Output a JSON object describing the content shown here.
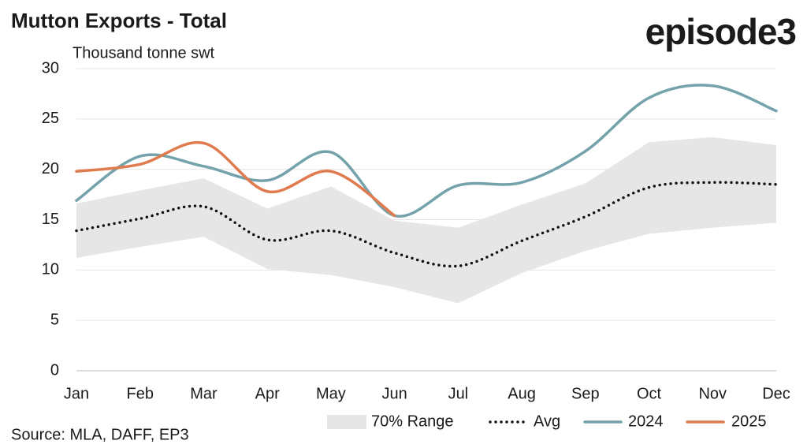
{
  "chart_data": {
    "type": "line",
    "title": "Mutton Exports - Total",
    "subtitle": "Thousand tonne swt",
    "logo": "episode3",
    "source": "Source: MLA, DAFF, EP3",
    "categories": [
      "Jan",
      "Feb",
      "Mar",
      "Apr",
      "May",
      "Jun",
      "Jul",
      "Aug",
      "Sep",
      "Oct",
      "Nov",
      "Dec"
    ],
    "ylim": [
      0,
      30
    ],
    "yticks": [
      0,
      5,
      10,
      15,
      20,
      25,
      30
    ],
    "grid": true,
    "legend": "bottom",
    "range": {
      "name": "70% Range",
      "color": "#e6e6e6",
      "lower": [
        11.2,
        12.3,
        13.3,
        10.1,
        9.5,
        8.3,
        6.7,
        9.7,
        11.9,
        13.6,
        14.2,
        14.7
      ],
      "upper": [
        16.6,
        17.9,
        19.1,
        16.1,
        18.3,
        14.9,
        14.2,
        16.5,
        18.6,
        22.7,
        23.2,
        22.4
      ]
    },
    "series": [
      {
        "name": "Avg",
        "color": "#111111",
        "style": "dotted",
        "values": [
          13.9,
          15.1,
          16.3,
          13.0,
          13.9,
          11.7,
          10.4,
          12.9,
          15.3,
          18.2,
          18.7,
          18.5
        ]
      },
      {
        "name": "2024",
        "color": "#73a2aa",
        "style": "solid",
        "values": [
          16.9,
          21.3,
          20.3,
          18.9,
          21.7,
          15.4,
          18.4,
          18.7,
          21.8,
          27.1,
          28.3,
          25.8
        ]
      },
      {
        "name": "2025",
        "color": "#e07b4f",
        "style": "solid",
        "values": [
          19.8,
          20.5,
          22.6,
          17.8,
          19.8,
          15.4,
          null,
          null,
          null,
          null,
          null,
          null
        ]
      }
    ]
  }
}
